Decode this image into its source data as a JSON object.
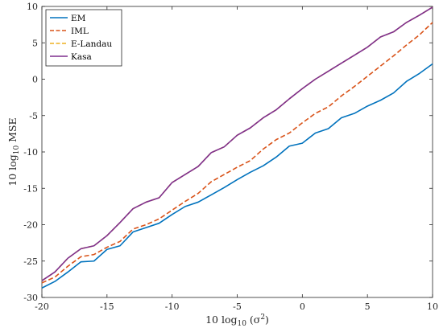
{
  "chart_data": {
    "type": "line",
    "title": "",
    "xlabel_main": "10 log",
    "xlabel_sub": "10",
    "xlabel_tail": " (σ",
    "xlabel_sup": "2",
    "xlabel_close": ")",
    "ylabel_main": "10 log",
    "ylabel_sub": "10",
    "ylabel_tail": " MSE",
    "xlim": [
      -20,
      10
    ],
    "ylim": [
      -30,
      10
    ],
    "xticks": [
      -20,
      -15,
      -10,
      -5,
      0,
      5,
      10
    ],
    "yticks": [
      -30,
      -25,
      -20,
      -15,
      -10,
      -5,
      0,
      5,
      10
    ],
    "grid": false,
    "legend_position": "top-left",
    "x": [
      -20,
      -19,
      -18,
      -17,
      -16,
      -15,
      -14,
      -13,
      -12,
      -11,
      -10,
      -9,
      -8,
      -7,
      -6,
      -5,
      -4,
      -3,
      -2,
      -1,
      0,
      1,
      2,
      3,
      4,
      5,
      6,
      7,
      8,
      9,
      10
    ],
    "series": [
      {
        "name": "EM",
        "color": "#0072BD",
        "dash": "solid",
        "values": [
          -28.7,
          -27.8,
          -26.5,
          -25.1,
          -25.0,
          -23.4,
          -22.9,
          -21.0,
          -20.4,
          -19.8,
          -18.6,
          -17.5,
          -16.9,
          -15.9,
          -14.9,
          -13.8,
          -12.8,
          -11.9,
          -10.7,
          -9.2,
          -8.8,
          -7.4,
          -6.8,
          -5.3,
          -4.7,
          -3.7,
          -2.9,
          -1.9,
          -0.3,
          0.8,
          2.1
        ]
      },
      {
        "name": "IML",
        "color": "#D95319",
        "dash": "dashed",
        "values": [
          -28.0,
          -27.2,
          -25.7,
          -24.4,
          -24.1,
          -23.1,
          -22.3,
          -20.6,
          -20.0,
          -19.2,
          -18.0,
          -16.8,
          -15.7,
          -14.1,
          -13.1,
          -12.1,
          -11.2,
          -9.6,
          -8.3,
          -7.4,
          -6.0,
          -4.7,
          -3.8,
          -2.3,
          -1.0,
          0.4,
          1.8,
          3.2,
          4.7,
          6.1,
          7.8
        ]
      },
      {
        "name": "E-Landau",
        "color": "#EDB120",
        "dash": "dashed",
        "values": [
          -27.7,
          -26.5,
          -24.6,
          -23.3,
          -22.9,
          -21.5,
          -19.7,
          -17.8,
          -16.9,
          -16.3,
          -14.2,
          -13.1,
          -12.0,
          -10.1,
          -9.3,
          -7.7,
          -6.7,
          -5.3,
          -4.2,
          -2.7,
          -1.3,
          0.0,
          1.1,
          2.2,
          3.3,
          4.4,
          5.8,
          6.5,
          7.8,
          8.8,
          9.9
        ]
      },
      {
        "name": "Kasa",
        "color": "#7E2F8E",
        "dash": "solid",
        "values": [
          -27.7,
          -26.5,
          -24.6,
          -23.3,
          -22.9,
          -21.5,
          -19.7,
          -17.8,
          -16.9,
          -16.3,
          -14.2,
          -13.1,
          -12.0,
          -10.1,
          -9.3,
          -7.7,
          -6.7,
          -5.3,
          -4.2,
          -2.7,
          -1.3,
          0.0,
          1.1,
          2.2,
          3.3,
          4.4,
          5.8,
          6.5,
          7.8,
          8.8,
          9.9
        ]
      }
    ]
  }
}
